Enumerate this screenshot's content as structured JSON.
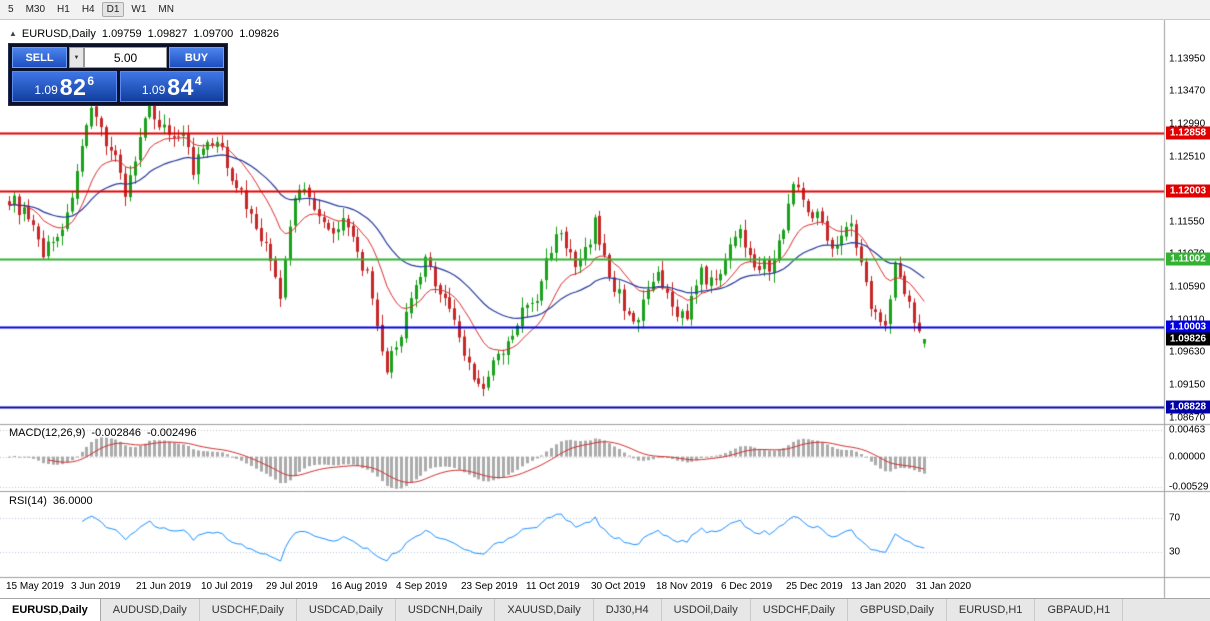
{
  "toolbar": {
    "timeframes": [
      "5",
      "M30",
      "H1",
      "H4",
      "D1",
      "W1",
      "MN"
    ],
    "active": "D1"
  },
  "chart_header": {
    "toggle_icon": "▲",
    "symbol": "EURUSD,Daily",
    "open": "1.09759",
    "high": "1.09827",
    "low": "1.09700",
    "close": "1.09826"
  },
  "one_click": {
    "sell_label": "SELL",
    "buy_label": "BUY",
    "volume": "5.00",
    "sell_price": {
      "prefix": "1.09",
      "big": "82",
      "sup": "6"
    },
    "buy_price": {
      "prefix": "1.09",
      "big": "84",
      "sup": "4"
    }
  },
  "price_axis": {
    "labels": [
      "1.13950",
      "1.13470",
      "1.12990",
      "1.12510",
      "1.12030",
      "1.11550",
      "1.11070",
      "1.10590",
      "1.10110",
      "1.09630",
      "1.09150",
      "1.08670"
    ]
  },
  "hlines": [
    {
      "price": 1.12858,
      "label": "1.12858",
      "color": "#E10000",
      "width": 2
    },
    {
      "price": 1.12003,
      "label": "1.12003",
      "color": "#E10000",
      "width": 2
    },
    {
      "price": 1.11002,
      "label": "1.11002",
      "color": "#32B132",
      "width": 2
    },
    {
      "price": 1.10003,
      "label": "1.10003",
      "color": "#0000E1",
      "width": 2
    },
    {
      "price": 1.08828,
      "label": "1.08828",
      "color": "#0000A8",
      "width": 2
    }
  ],
  "current_price": {
    "value": 1.09826,
    "label": "1.09826",
    "color": "#000000"
  },
  "indicators": {
    "macd": {
      "label": "MACD(12,26,9)",
      "value_main": "-0.002846",
      "value_signal": "-0.002496",
      "axis": [
        {
          "label": "0.00463",
          "value": 0.00463
        },
        {
          "label": "0.00000",
          "value": 0
        },
        {
          "label": "-0.00529",
          "value": -0.00529
        }
      ]
    },
    "rsi": {
      "label": "RSI(14)",
      "value": "36.0000",
      "axis": [
        {
          "label": "70",
          "value": 70
        },
        {
          "label": "30",
          "value": 30
        }
      ]
    }
  },
  "time_axis": [
    "15 May 2019",
    "3 Jun 2019",
    "21 Jun 2019",
    "10 Jul 2019",
    "29 Jul 2019",
    "16 Aug 2019",
    "4 Sep 2019",
    "23 Sep 2019",
    "11 Oct 2019",
    "30 Oct 2019",
    "18 Nov 2019",
    "6 Dec 2019",
    "25 Dec 2019",
    "13 Jan 2020",
    "31 Jan 2020"
  ],
  "tabs": [
    "EURUSD,Daily",
    "AUDUSD,Daily",
    "USDCHF,Daily",
    "USDCAD,Daily",
    "USDCNH,Daily",
    "XAUUSD,Daily",
    "DJ30,H4",
    "USDOil,Daily",
    "USDCHF,Daily",
    "GBPUSD,Daily",
    "EURUSD,H1",
    "GBPAUD,H1"
  ],
  "active_tab": "EURUSD,Daily",
  "colors": {
    "up": "#1BA11B",
    "down": "#C62828",
    "ma_fast": "#D93030",
    "ma_slow": "#283C9B",
    "macd_hist": "#ABABAB",
    "macd_signal": "#D23030",
    "rsi": "#1E90FF",
    "hline_red": "#E10000",
    "hline_green": "#32B132",
    "hline_blue": "#0000E1"
  },
  "chart_data": {
    "type": "candlestick",
    "symbol": "EURUSD",
    "timeframe": "Daily",
    "candle_count": 190,
    "last_ohlc": {
      "open": 1.09759,
      "high": 1.09827,
      "low": 1.097,
      "close": 1.09826
    },
    "visible_price_range": [
      1.0858,
      1.1452
    ],
    "anchors": [
      [
        0,
        1.119
      ],
      [
        3,
        1.1168
      ],
      [
        5,
        1.114
      ],
      [
        7,
        1.1112
      ],
      [
        9,
        1.1128
      ],
      [
        12,
        1.116
      ],
      [
        14,
        1.1235
      ],
      [
        17,
        1.1312
      ],
      [
        19,
        1.129
      ],
      [
        22,
        1.125
      ],
      [
        24,
        1.12
      ],
      [
        26,
        1.1245
      ],
      [
        29,
        1.1328
      ],
      [
        31,
        1.1302
      ],
      [
        33,
        1.1282
      ],
      [
        36,
        1.129
      ],
      [
        38,
        1.1228
      ],
      [
        40,
        1.1262
      ],
      [
        43,
        1.127
      ],
      [
        46,
        1.1225
      ],
      [
        49,
        1.118
      ],
      [
        52,
        1.1135
      ],
      [
        55,
        1.1078
      ],
      [
        56,
        1.1042
      ],
      [
        59,
        1.1192
      ],
      [
        61,
        1.1205
      ],
      [
        63,
        1.118
      ],
      [
        66,
        1.1142
      ],
      [
        69,
        1.1158
      ],
      [
        72,
        1.1108
      ],
      [
        74,
        1.1075
      ],
      [
        76,
        1.0992
      ],
      [
        78,
        1.0938
      ],
      [
        80,
        1.0975
      ],
      [
        83,
        1.1035
      ],
      [
        86,
        1.1095
      ],
      [
        88,
        1.1068
      ],
      [
        91,
        1.1028
      ],
      [
        93,
        1.0985
      ],
      [
        95,
        1.0945
      ],
      [
        98,
        1.0902
      ],
      [
        100,
        1.0948
      ],
      [
        103,
        1.0972
      ],
      [
        106,
        1.1022
      ],
      [
        109,
        1.1042
      ],
      [
        112,
        1.112
      ],
      [
        114,
        1.1142
      ],
      [
        117,
        1.1082
      ],
      [
        119,
        1.111
      ],
      [
        121,
        1.1152
      ],
      [
        124,
        1.1075
      ],
      [
        127,
        1.1032
      ],
      [
        130,
        1.1008
      ],
      [
        132,
        1.1052
      ],
      [
        134,
        1.1072
      ],
      [
        137,
        1.1028
      ],
      [
        140,
        1.1018
      ],
      [
        143,
        1.1078
      ],
      [
        146,
        1.1062
      ],
      [
        149,
        1.1128
      ],
      [
        151,
        1.1138
      ],
      [
        154,
        1.1098
      ],
      [
        157,
        1.1088
      ],
      [
        159,
        1.1122
      ],
      [
        162,
        1.1212
      ],
      [
        164,
        1.1188
      ],
      [
        167,
        1.1162
      ],
      [
        170,
        1.1122
      ],
      [
        172,
        1.1136
      ],
      [
        174,
        1.1148
      ],
      [
        176,
        1.1092
      ],
      [
        178,
        1.1028
      ],
      [
        181,
        1.1012
      ],
      [
        183,
        1.109
      ],
      [
        185,
        1.1058
      ],
      [
        186,
        1.1042
      ],
      [
        187,
        1.0998
      ],
      [
        188,
        1.0992
      ],
      [
        189,
        1.09826
      ]
    ]
  }
}
